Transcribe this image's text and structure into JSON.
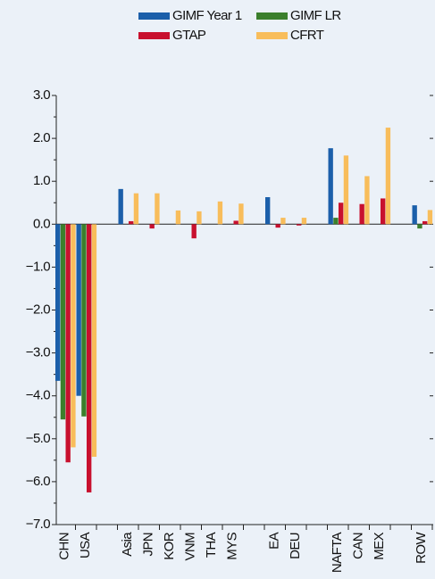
{
  "chart_data": {
    "type": "bar",
    "categories": [
      "CHN",
      "USA",
      null,
      "Asia",
      "JPN",
      "KOR",
      "VNM",
      "THA",
      "MYS",
      null,
      "EA",
      "DEU",
      null,
      "NAFTA",
      "CAN",
      "MEX",
      null,
      "ROW"
    ],
    "series": [
      {
        "name": "GIMF Year 1",
        "color": "#1b5faa",
        "values": [
          -3.65,
          -4.0,
          null,
          0.82,
          null,
          null,
          null,
          null,
          null,
          null,
          0.63,
          null,
          null,
          1.77,
          null,
          null,
          null,
          0.44
        ]
      },
      {
        "name": "GIMF LR",
        "color": "#3b7f2c",
        "values": [
          -4.55,
          -4.48,
          null,
          null,
          null,
          null,
          null,
          null,
          null,
          null,
          null,
          null,
          null,
          0.15,
          null,
          null,
          null,
          -0.1
        ]
      },
      {
        "name": "GTAP",
        "color": "#c8102e",
        "values": [
          -5.55,
          -6.25,
          null,
          0.07,
          -0.1,
          null,
          -0.33,
          null,
          0.08,
          null,
          -0.08,
          -0.03,
          null,
          0.5,
          0.47,
          0.6,
          null,
          0.07
        ]
      },
      {
        "name": "CFRT",
        "color": "#f8bd5b",
        "values": [
          -5.2,
          -5.42,
          null,
          0.72,
          0.72,
          0.32,
          0.3,
          0.53,
          0.48,
          null,
          0.15,
          0.15,
          null,
          1.6,
          1.12,
          2.25,
          null,
          0.33
        ]
      }
    ],
    "ylim": [
      -7,
      3
    ],
    "yticks": [
      {
        "value": 3,
        "label": "3.0"
      },
      {
        "value": 2,
        "label": "2.0"
      },
      {
        "value": 1,
        "label": "1.0"
      },
      {
        "value": 0,
        "label": "0.0"
      },
      {
        "value": -1,
        "label": "−1.0"
      },
      {
        "value": -2,
        "label": "−2.0"
      },
      {
        "value": -3,
        "label": "−3.0"
      },
      {
        "value": -4,
        "label": "−4.0"
      },
      {
        "value": -5,
        "label": "−5.0"
      },
      {
        "value": -6,
        "label": "−6.0"
      },
      {
        "value": -7,
        "label": "−7.0"
      }
    ],
    "minor_yticks": [
      2.5,
      1.5,
      0.5,
      -0.5,
      -1.5,
      -2.5,
      -3.5,
      -4.5,
      -5.5,
      -6.5
    ],
    "grid": false
  }
}
